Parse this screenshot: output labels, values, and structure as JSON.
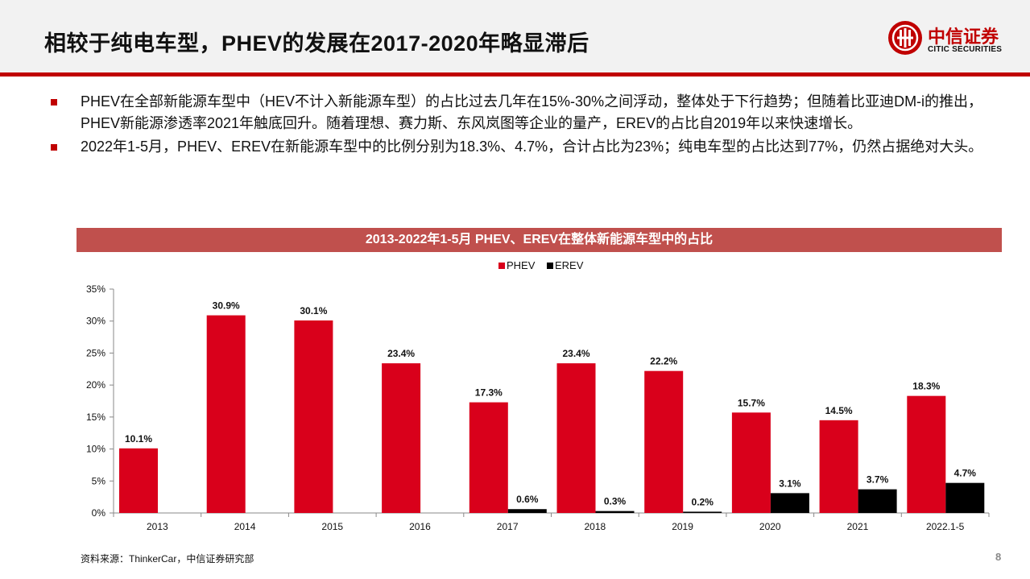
{
  "header": {
    "title": "相较于纯电车型，PHEV的发展在2017-2020年略显滞后",
    "logo_cn": "中信证券",
    "logo_en": "CITIC SECURITIES"
  },
  "bullets": [
    "PHEV在全部新能源车型中（HEV不计入新能源车型）的占比过去几年在15%-30%之间浮动，整体处于下行趋势；但随着比亚迪DM-i的推出，PHEV新能源渗透率2021年触底回升。随着理想、赛力斯、东风岚图等企业的量产，EREV的占比自2019年以来快速增长。",
    "2022年1-5月，PHEV、EREV在新能源车型中的比例分别为18.3%、4.7%，合计占比为23%；纯电车型的占比达到77%，仍然占据绝对大头。"
  ],
  "chart_data": {
    "type": "bar",
    "title": "2013-2022年1-5月 PHEV、EREV在整体新能源车型中的占比",
    "categories": [
      "2013",
      "2014",
      "2015",
      "2016",
      "2017",
      "2018",
      "2019",
      "2020",
      "2021",
      "2022.1-5"
    ],
    "series": [
      {
        "name": "PHEV",
        "color": "#d9001b",
        "values": [
          10.1,
          30.9,
          30.1,
          23.4,
          17.3,
          23.4,
          22.2,
          15.7,
          14.5,
          18.3
        ],
        "labels": [
          "10.1%",
          "30.9%",
          "30.1%",
          "23.4%",
          "17.3%",
          "23.4%",
          "22.2%",
          "15.7%",
          "14.5%",
          "18.3%"
        ]
      },
      {
        "name": "EREV",
        "color": "#000000",
        "values": [
          null,
          null,
          null,
          null,
          0.6,
          0.3,
          0.2,
          3.1,
          3.7,
          4.7
        ],
        "labels": [
          "",
          "",
          "",
          "",
          "0.6%",
          "0.3%",
          "0.2%",
          "3.1%",
          "3.7%",
          "4.7%"
        ]
      }
    ],
    "ylim": [
      0,
      35
    ],
    "yticks": [
      "0%",
      "5%",
      "10%",
      "15%",
      "20%",
      "25%",
      "30%",
      "35%"
    ],
    "legend": "top-center",
    "grid": false
  },
  "footer": {
    "source": "资料来源：ThinkerCar，中信证券研究部",
    "page": "8"
  }
}
